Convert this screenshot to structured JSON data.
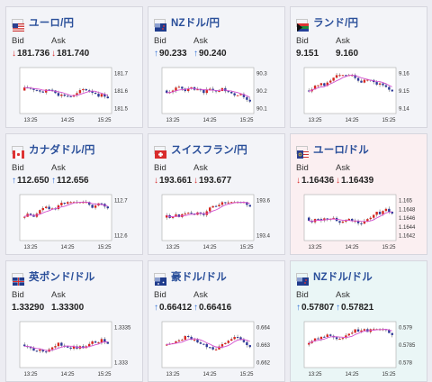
{
  "colors": {
    "up_arrow": "#2f6fd6",
    "down_arrow": "#d82c2c",
    "bull_candle": "#d8261f",
    "bear_candle": "#2f3b9a",
    "moving_average": "#d34fcf",
    "pair_title": "#2a4f9a"
  },
  "labels": {
    "bid": "Bid",
    "ask": "Ask"
  },
  "cards": [
    {
      "name": "usdjpy",
      "title": "ユーロ/円",
      "flag": "usd-flag-icon",
      "bg": "plain",
      "bid": "181.736",
      "ask": "181.740",
      "bid_dir": "down",
      "ask_dir": "down",
      "y_ticks": [
        "181.7",
        "181.6",
        "181.5"
      ],
      "x_ticks": [
        "13:25",
        "14:25",
        "15:25"
      ]
    },
    {
      "name": "nzdjpy",
      "title": "NZドル/円",
      "flag": "nz-flag-icon",
      "bg": "plain",
      "bid": "90.233",
      "ask": "90.240",
      "bid_dir": "up",
      "ask_dir": "up",
      "y_ticks": [
        "90.3",
        "90.2",
        "90.1"
      ],
      "x_ticks": [
        "13:25",
        "14:25",
        "15:25"
      ]
    },
    {
      "name": "zarjpy",
      "title": "ランド/円",
      "flag": "za-flag-icon",
      "bg": "plain",
      "bid": "9.151",
      "ask": "9.160",
      "bid_dir": "none",
      "ask_dir": "none",
      "y_ticks": [
        "9.16",
        "9.15",
        "9.14"
      ],
      "x_ticks": [
        "13:25",
        "14:25",
        "15:25"
      ]
    },
    {
      "name": "cadjpy",
      "title": "カナダドル/円",
      "flag": "ca-flag-icon",
      "bg": "plain",
      "bid": "112.650",
      "ask": "112.656",
      "bid_dir": "up",
      "ask_dir": "up",
      "y_ticks": [
        "112.7",
        "112.6"
      ],
      "x_ticks": [
        "13:25",
        "14:25",
        "15:25"
      ]
    },
    {
      "name": "chfjpy",
      "title": "スイスフラン/円",
      "flag": "ch-flag-icon",
      "bg": "plain",
      "bid": "193.661",
      "ask": "193.677",
      "bid_dir": "down",
      "ask_dir": "down",
      "y_ticks": [
        "193.6",
        "193.4"
      ],
      "x_ticks": [
        "13:25",
        "14:25",
        "15:25"
      ]
    },
    {
      "name": "eurusd",
      "title": "ユーロ/ドル",
      "flag": "eu-us-flag-icon",
      "bg": "pink",
      "bid": "1.16436",
      "ask": "1.16439",
      "bid_dir": "down",
      "ask_dir": "down",
      "y_ticks": [
        "1.165",
        "1.1648",
        "1.1646",
        "1.1644",
        "1.1642"
      ],
      "x_ticks": [
        "13:25",
        "14:25",
        "15:25"
      ]
    },
    {
      "name": "gbpusd",
      "title": "英ポンド/ドル",
      "flag": "gb-us-flag-icon",
      "bg": "plain",
      "bid": "1.33290",
      "ask": "1.33300",
      "bid_dir": "none",
      "ask_dir": "none",
      "y_ticks": [
        "1.3335",
        "1.333"
      ],
      "x_ticks": [
        "13:25",
        "14:25",
        "15:25"
      ]
    },
    {
      "name": "audusd",
      "title": "豪ドル/ドル",
      "flag": "au-us-flag-icon",
      "bg": "plain",
      "bid": "0.66412",
      "ask": "0.66416",
      "bid_dir": "up",
      "ask_dir": "up",
      "y_ticks": [
        "0.664",
        "0.663",
        "0.662"
      ],
      "x_ticks": [
        "13:25",
        "14:25",
        "15:25"
      ]
    },
    {
      "name": "nzdusd",
      "title": "NZドル/ドル",
      "flag": "nz-us-flag-icon",
      "bg": "teal",
      "bid": "0.57807",
      "ask": "0.57821",
      "bid_dir": "up",
      "ask_dir": "up",
      "y_ticks": [
        "0.579",
        "0.5785",
        "0.578"
      ],
      "x_ticks": [
        "13:25",
        "14:25",
        "15:25"
      ]
    }
  ]
}
